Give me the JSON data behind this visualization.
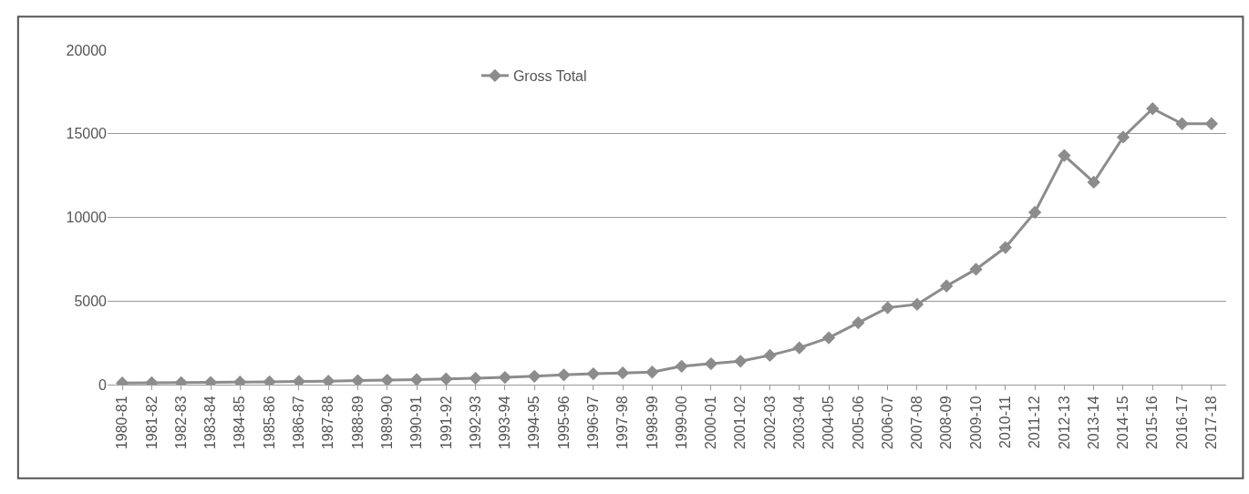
{
  "chart_data": {
    "type": "line",
    "categories": [
      "1980-81",
      "1981-82",
      "1982-83",
      "1983-84",
      "1984-85",
      "1985-86",
      "1986-87",
      "1987-88",
      "1988-89",
      "1989-90",
      "1990-91",
      "1991-92",
      "1992-93",
      "1993-94",
      "1994-95",
      "1995-96",
      "1996-97",
      "1997-98",
      "1998-99",
      "1999-00",
      "2000-01",
      "2001-02",
      "2002-03",
      "2003-04",
      "2004-05",
      "2005-06",
      "2006-07",
      "2007-08",
      "2008-09",
      "2009-10",
      "2010-11",
      "2011-12",
      "2012-13",
      "2013-14",
      "2014-15",
      "2015-16",
      "2016-17",
      "2017-18"
    ],
    "series": [
      {
        "name": "Gross Total",
        "color": "#8c8c8c",
        "values": [
          100,
          110,
          120,
          130,
          150,
          170,
          190,
          210,
          240,
          270,
          300,
          340,
          380,
          430,
          500,
          580,
          650,
          700,
          750,
          1100,
          1250,
          1400,
          1750,
          2200,
          2800,
          3700,
          4600,
          4800,
          5900,
          6900,
          8200,
          10300,
          13700,
          12100,
          14800,
          16500,
          15600,
          15600
        ]
      }
    ],
    "ylim": [
      0,
      20000
    ],
    "yticks": [
      0,
      5000,
      10000,
      15000,
      20000
    ],
    "grid": "y",
    "legend": "top",
    "marker": "diamond",
    "line_style": "solid"
  }
}
